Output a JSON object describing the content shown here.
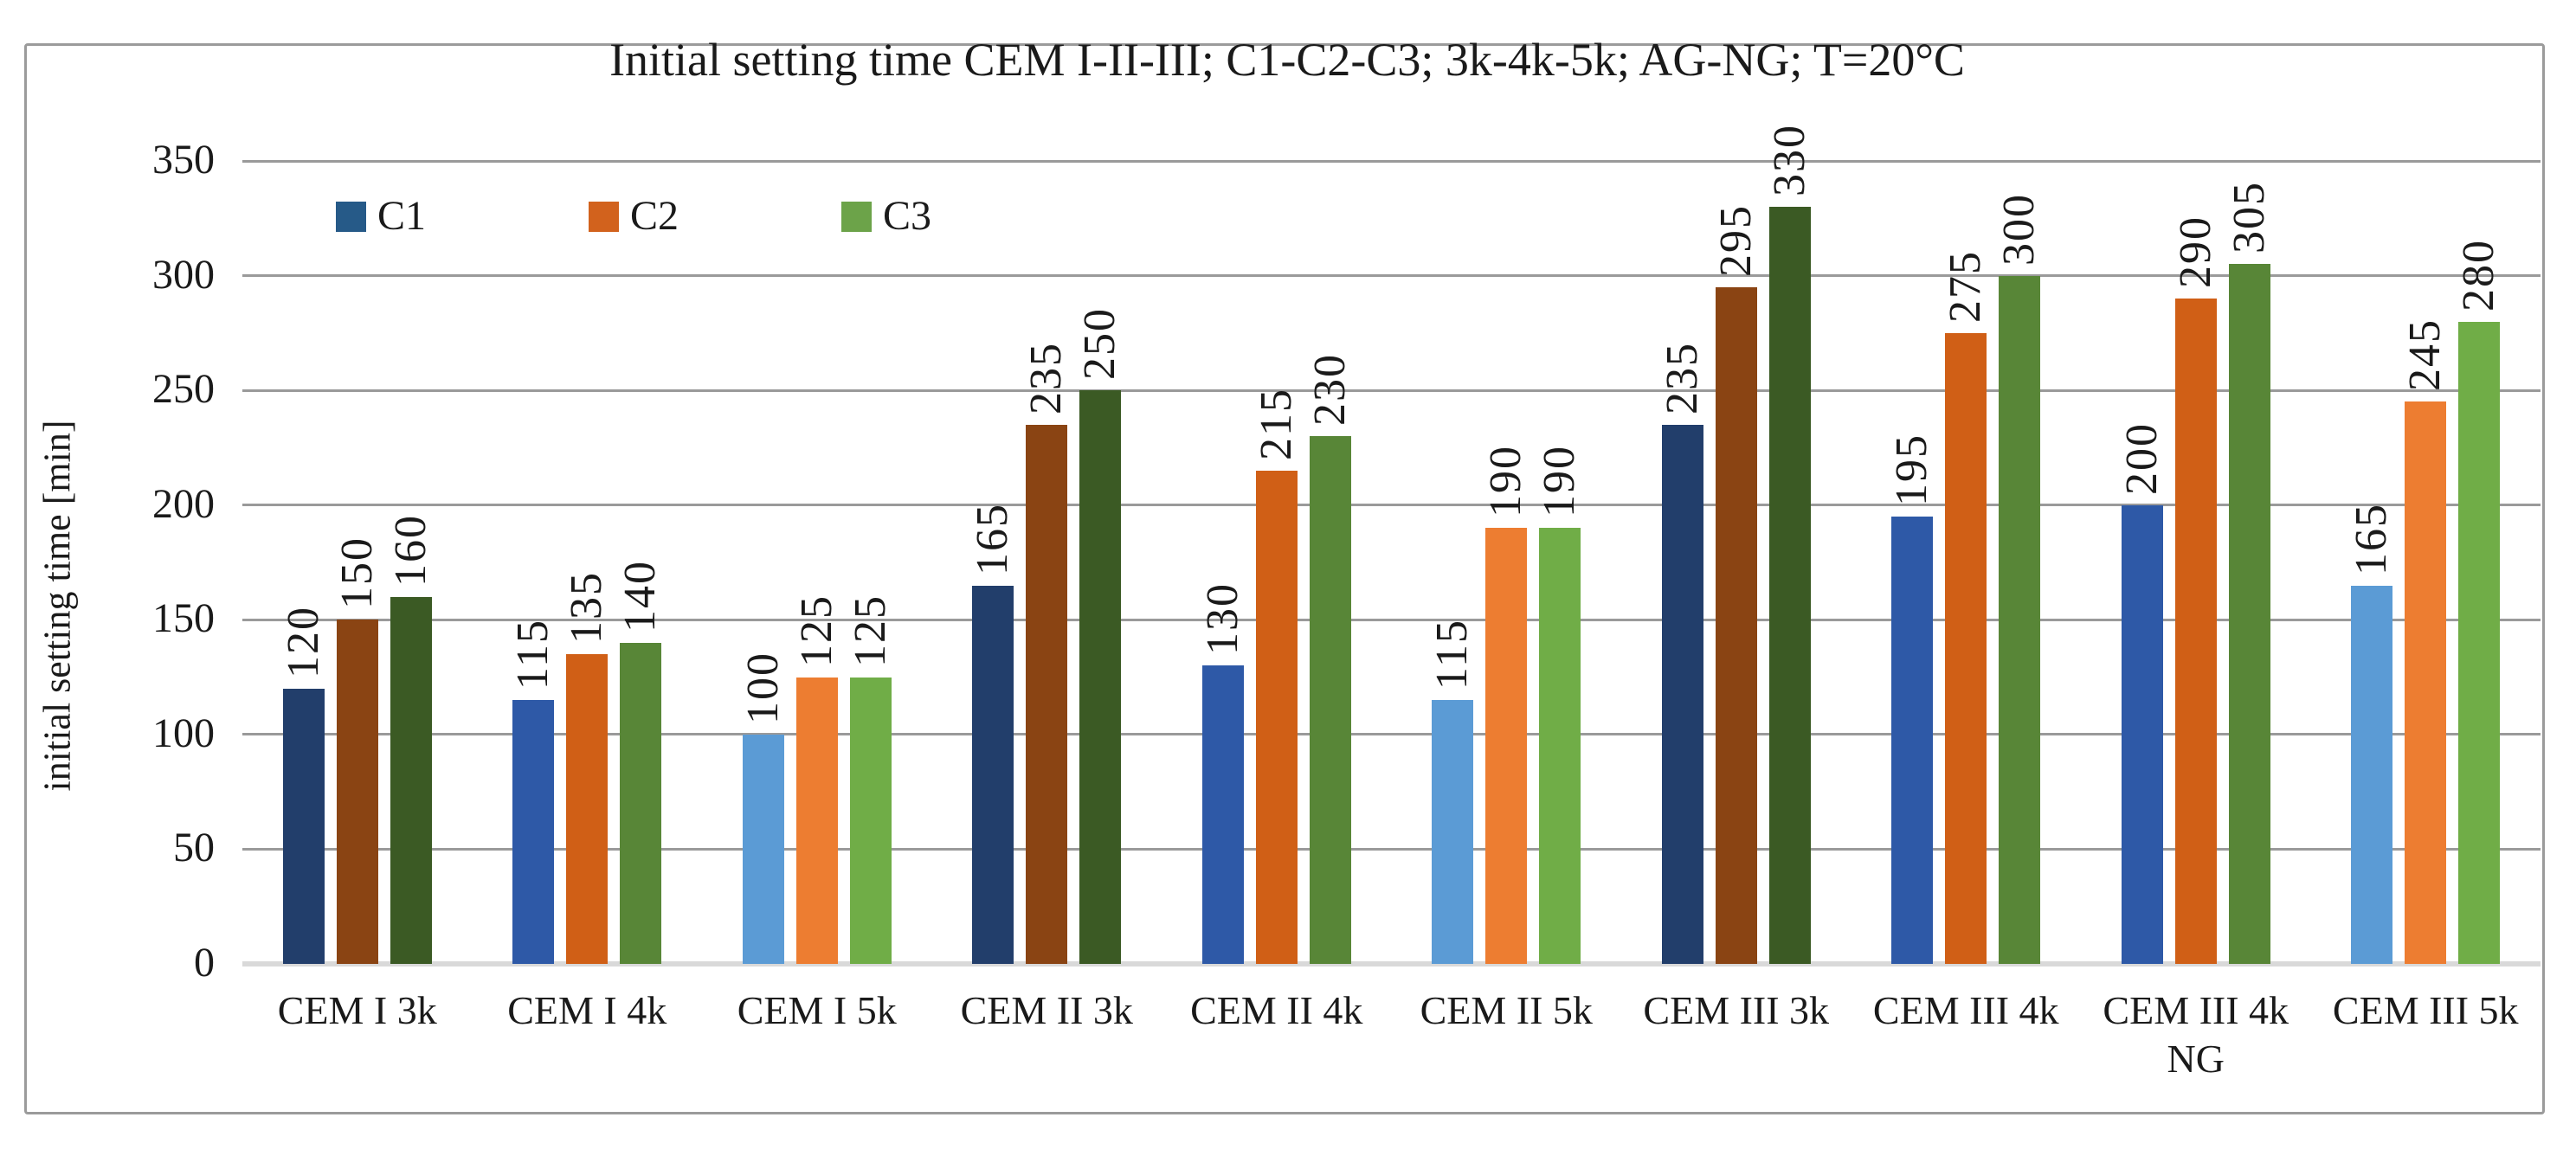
{
  "chart_data": {
    "type": "bar",
    "title": "Initial setting time CEM I-II-III; C1-C2-C3; 3k-4k-5k; AG-NG; T=20°C",
    "xlabel": "",
    "ylabel": "initial setting time [min]",
    "ylim": [
      0,
      350
    ],
    "yticks": [
      0,
      50,
      100,
      150,
      200,
      250,
      300,
      350
    ],
    "grid": true,
    "value_labels": {
      "shown": true,
      "rotation": "90deg-counterclockwise"
    },
    "legend": {
      "position": "top-left-inside",
      "entries": [
        {
          "label": "C1",
          "color": "#265A88"
        },
        {
          "label": "C2",
          "color": "#D2621D"
        },
        {
          "label": "C3",
          "color": "#6CA349"
        }
      ]
    },
    "categories": [
      "CEM I 3k",
      "CEM I 4k",
      "CEM I 5k",
      "CEM II 3k",
      "CEM II 4k",
      "CEM II 5k",
      "CEM III 3k",
      "CEM III 4k",
      "CEM III 4k NG",
      "CEM III 5k"
    ],
    "shade_pattern_by_group": [
      "dark",
      "medium",
      "light",
      "dark",
      "medium",
      "light",
      "dark",
      "medium",
      "medium",
      "light"
    ],
    "palette": {
      "C1": {
        "dark": "#223E6B",
        "medium": "#2E59A7",
        "light": "#5B9BD5"
      },
      "C2": {
        "dark": "#8A4413",
        "medium": "#D05F16",
        "light": "#ED7D31"
      },
      "C3": {
        "dark": "#3B5A24",
        "medium": "#588637",
        "light": "#70AD47"
      }
    },
    "series": [
      {
        "name": "C1",
        "values": [
          120,
          115,
          100,
          165,
          130,
          115,
          235,
          195,
          200,
          165
        ]
      },
      {
        "name": "C2",
        "values": [
          150,
          135,
          125,
          235,
          215,
          190,
          295,
          275,
          290,
          245
        ]
      },
      {
        "name": "C3",
        "values": [
          160,
          140,
          125,
          250,
          230,
          190,
          330,
          300,
          305,
          280
        ]
      }
    ]
  },
  "colors": {
    "background": "#FFFFFF",
    "frame_border": "#9B9B9B",
    "gridline": "#9A9A9A",
    "axis_baseline": "#D9D9D9",
    "text": "#1A1A1A"
  }
}
